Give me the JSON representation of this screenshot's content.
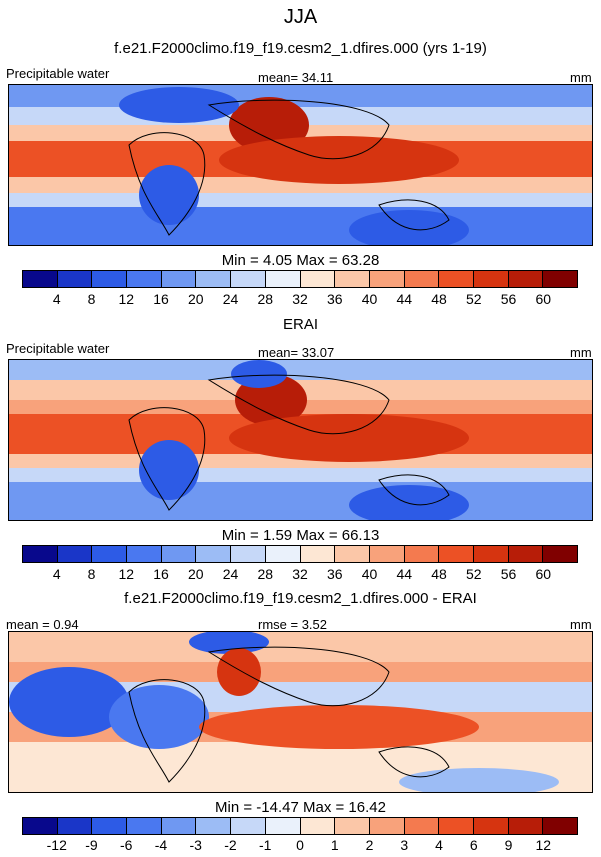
{
  "title": "JJA",
  "panels": [
    {
      "header": "f.e21.F2000climo.f19_f19.cesm2_1.dfires.000 (yrs 1-19)",
      "left_label": "Precipitable water",
      "center_label": "mean=  34.11",
      "unit": "mm",
      "minmax": "Min =   4.05 Max =  63.28",
      "colorbar_ticks": [
        "4",
        "8",
        "12",
        "16",
        "20",
        "24",
        "28",
        "32",
        "36",
        "40",
        "44",
        "48",
        "52",
        "56",
        "60"
      ],
      "colors": [
        "#08088c",
        "#1a36c8",
        "#2d5be6",
        "#4a78f0",
        "#6f98f2",
        "#9cbcf5",
        "#c6d8f8",
        "#eaf1fb",
        "#fde7d4",
        "#fbc7a8",
        "#f8a27b",
        "#f47a4f",
        "#ec5125",
        "#d63410",
        "#b71d08",
        "#800000"
      ]
    },
    {
      "header": "ERAI",
      "left_label": "Precipitable water",
      "center_label": "mean=  33.07",
      "unit": "mm",
      "minmax": "Min =   1.59 Max =  66.13",
      "colorbar_ticks": [
        "4",
        "8",
        "12",
        "16",
        "20",
        "24",
        "28",
        "32",
        "36",
        "40",
        "44",
        "48",
        "52",
        "56",
        "60"
      ],
      "colors": [
        "#08088c",
        "#1a36c8",
        "#2d5be6",
        "#4a78f0",
        "#6f98f2",
        "#9cbcf5",
        "#c6d8f8",
        "#eaf1fb",
        "#fde7d4",
        "#fbc7a8",
        "#f8a27b",
        "#f47a4f",
        "#ec5125",
        "#d63410",
        "#b71d08",
        "#800000"
      ]
    },
    {
      "header": "f.e21.F2000climo.f19_f19.cesm2_1.dfires.000 - ERAI",
      "left_label": "mean =   0.94",
      "center_label": "rmse =   3.52",
      "unit": "mm",
      "minmax": "Min = -14.47 Max =  16.42",
      "colorbar_ticks": [
        "-12",
        "-9",
        "-6",
        "-4",
        "-3",
        "-2",
        "-1",
        "0",
        "1",
        "2",
        "3",
        "4",
        "6",
        "9",
        "12"
      ],
      "colors": [
        "#08088c",
        "#1a36c8",
        "#2d5be6",
        "#4a78f0",
        "#6f98f2",
        "#9cbcf5",
        "#c6d8f8",
        "#eaf1fb",
        "#fde7d4",
        "#fbc7a8",
        "#f8a27b",
        "#f47a4f",
        "#ec5125",
        "#d63410",
        "#b71d08",
        "#800000"
      ]
    }
  ],
  "chart_data": [
    {
      "type": "heatmap",
      "title": "f.e21.F2000climo.f19_f19.cesm2_1.dfires.000 (yrs 1-19)",
      "variable": "Precipitable water",
      "units": "mm",
      "mean": 34.11,
      "min": 4.05,
      "max": 63.28,
      "levels": [
        4,
        8,
        12,
        16,
        20,
        24,
        28,
        32,
        36,
        40,
        44,
        48,
        52,
        56,
        60
      ]
    },
    {
      "type": "heatmap",
      "title": "ERAI",
      "variable": "Precipitable water",
      "units": "mm",
      "mean": 33.07,
      "min": 1.59,
      "max": 66.13,
      "levels": [
        4,
        8,
        12,
        16,
        20,
        24,
        28,
        32,
        36,
        40,
        44,
        48,
        52,
        56,
        60
      ]
    },
    {
      "type": "heatmap",
      "title": "f.e21.F2000climo.f19_f19.cesm2_1.dfires.000 - ERAI",
      "units": "mm",
      "mean": 0.94,
      "rmse": 3.52,
      "min": -14.47,
      "max": 16.42,
      "levels": [
        -12,
        -9,
        -6,
        -4,
        -3,
        -2,
        -1,
        0,
        1,
        2,
        3,
        4,
        6,
        9,
        12
      ]
    }
  ]
}
